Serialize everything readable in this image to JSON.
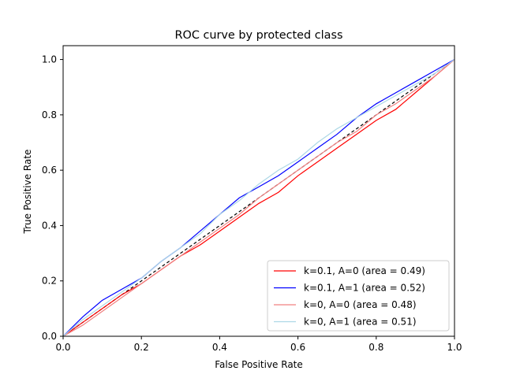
{
  "chart_data": {
    "type": "line",
    "title": "ROC curve by protected class",
    "xlabel": "False Positive Rate",
    "ylabel": "True Positive Rate",
    "xlim": [
      0.0,
      1.0
    ],
    "ylim": [
      0.0,
      1.05
    ],
    "xticks": [
      0.0,
      0.2,
      0.4,
      0.6,
      0.8,
      1.0
    ],
    "yticks": [
      0.0,
      0.2,
      0.4,
      0.6,
      0.8,
      1.0
    ],
    "xtick_labels": [
      "0.0",
      "0.2",
      "0.4",
      "0.6",
      "0.8",
      "1.0"
    ],
    "ytick_labels": [
      "0.0",
      "0.2",
      "0.4",
      "0.6",
      "0.8",
      "1.0"
    ],
    "grid": false,
    "legend_position": "lower-right",
    "reference_line": {
      "x": [
        0,
        1
      ],
      "y": [
        0,
        1
      ],
      "color": "#000000",
      "style": "dashed"
    },
    "series": [
      {
        "name": "k=0.1, A=0 (area = 0.49)",
        "color": "#ff0000",
        "x": [
          0,
          0.05,
          0.1,
          0.15,
          0.2,
          0.25,
          0.3,
          0.35,
          0.4,
          0.45,
          0.5,
          0.55,
          0.6,
          0.65,
          0.7,
          0.75,
          0.8,
          0.85,
          0.9,
          0.95,
          1.0
        ],
        "y": [
          0,
          0.05,
          0.1,
          0.15,
          0.19,
          0.24,
          0.29,
          0.33,
          0.38,
          0.43,
          0.48,
          0.52,
          0.58,
          0.63,
          0.68,
          0.73,
          0.78,
          0.82,
          0.88,
          0.94,
          1.0
        ]
      },
      {
        "name": "k=0.1, A=1 (area = 0.52)",
        "color": "#0000ff",
        "x": [
          0,
          0.05,
          0.1,
          0.15,
          0.2,
          0.25,
          0.3,
          0.35,
          0.4,
          0.45,
          0.5,
          0.55,
          0.6,
          0.65,
          0.7,
          0.75,
          0.8,
          0.85,
          0.9,
          0.95,
          1.0
        ],
        "y": [
          0,
          0.07,
          0.13,
          0.17,
          0.21,
          0.27,
          0.32,
          0.38,
          0.44,
          0.5,
          0.54,
          0.58,
          0.63,
          0.68,
          0.73,
          0.79,
          0.84,
          0.88,
          0.92,
          0.96,
          1.0
        ]
      },
      {
        "name": "k=0, A=0 (area = 0.48)",
        "color": "#f08080",
        "x": [
          0,
          0.05,
          0.1,
          0.15,
          0.2,
          0.25,
          0.3,
          0.35,
          0.4,
          0.45,
          0.5,
          0.55,
          0.6,
          0.65,
          0.7,
          0.75,
          0.8,
          0.85,
          0.9,
          0.95,
          1.0
        ],
        "y": [
          0,
          0.04,
          0.09,
          0.14,
          0.19,
          0.24,
          0.29,
          0.34,
          0.39,
          0.44,
          0.5,
          0.55,
          0.6,
          0.65,
          0.7,
          0.74,
          0.8,
          0.84,
          0.89,
          0.94,
          1.0
        ]
      },
      {
        "name": "k=0, A=1 (area = 0.51)",
        "color": "#add8e6",
        "x": [
          0,
          0.05,
          0.1,
          0.15,
          0.2,
          0.25,
          0.3,
          0.35,
          0.4,
          0.45,
          0.5,
          0.55,
          0.6,
          0.65,
          0.7,
          0.75,
          0.8,
          0.85,
          0.9,
          0.95,
          1.0
        ],
        "y": [
          0,
          0.06,
          0.11,
          0.16,
          0.21,
          0.27,
          0.32,
          0.37,
          0.44,
          0.49,
          0.55,
          0.6,
          0.64,
          0.7,
          0.75,
          0.79,
          0.83,
          0.87,
          0.91,
          0.95,
          1.0
        ]
      }
    ]
  }
}
